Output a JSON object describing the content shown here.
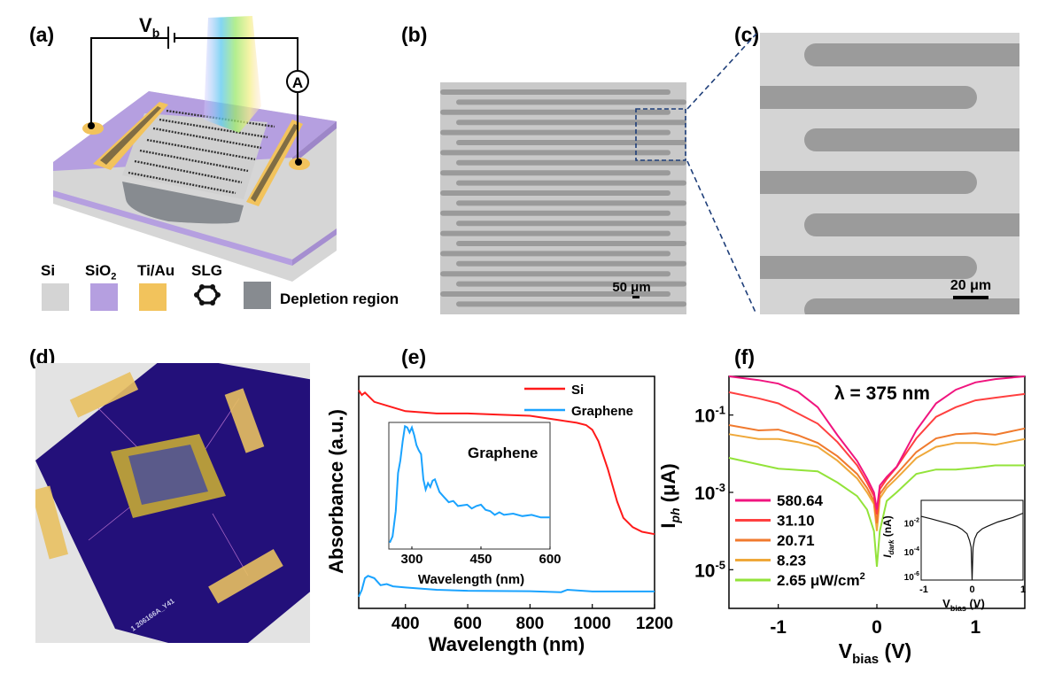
{
  "panels": {
    "a": {
      "label": "(a)",
      "bias_label": "V",
      "bias_sub": "b",
      "ammeter": "A",
      "legend": [
        {
          "label": "Si",
          "color": "#d4d4d4"
        },
        {
          "label": "SiO",
          "sub": "2",
          "color": "#b59fe0"
        },
        {
          "label": "Ti/Au",
          "color": "#f2c35c"
        },
        {
          "label": "SLG",
          "icon": "hexagon-ring-icon"
        },
        {
          "label": "Depletion region",
          "color": "#878b90"
        }
      ]
    },
    "b": {
      "label": "(b)",
      "scale_bar": "50 μm"
    },
    "c": {
      "label": "(c)",
      "scale_bar": "20 μm"
    },
    "d": {
      "label": "(d)",
      "board_text": "1 206166A_Y41"
    },
    "e": {
      "label": "(e)"
    },
    "f": {
      "label": "(f)"
    }
  },
  "chart_data": [
    {
      "panel": "e",
      "type": "line",
      "xlabel": "Wavelength (nm)",
      "ylabel": "Absorbance (a.u.)",
      "xlim": [
        250,
        1200
      ],
      "ylim": [
        0,
        1
      ],
      "xticks": [
        400,
        600,
        800,
        1000,
        1200
      ],
      "legend_position": "top-right",
      "series": [
        {
          "name": "Si",
          "color": "#ff1a1a",
          "x": [
            250,
            260,
            270,
            300,
            350,
            400,
            500,
            600,
            700,
            800,
            900,
            950,
            980,
            1000,
            1020,
            1050,
            1080,
            1100,
            1130,
            1160,
            1200
          ],
          "y": [
            0.94,
            0.92,
            0.93,
            0.89,
            0.87,
            0.85,
            0.84,
            0.84,
            0.835,
            0.83,
            0.81,
            0.8,
            0.79,
            0.77,
            0.72,
            0.6,
            0.46,
            0.39,
            0.35,
            0.33,
            0.32
          ]
        },
        {
          "name": "Graphene",
          "color": "#1aa3ff",
          "x": [
            250,
            260,
            270,
            280,
            300,
            320,
            340,
            360,
            400,
            500,
            600,
            800,
            900,
            920,
            1000,
            1200
          ],
          "y": [
            0.05,
            0.08,
            0.13,
            0.14,
            0.13,
            0.1,
            0.105,
            0.095,
            0.09,
            0.08,
            0.076,
            0.074,
            0.07,
            0.08,
            0.073,
            0.073
          ]
        }
      ],
      "inset": {
        "type": "line",
        "title": "Graphene",
        "xlabel": "Wavelength (nm)",
        "xlim": [
          250,
          600
        ],
        "ylim": [
          0,
          1
        ],
        "xticks": [
          300,
          450,
          600
        ],
        "series": [
          {
            "color": "#1aa3ff",
            "x": [
              252,
              258,
              265,
              270,
              275,
              280,
              285,
              290,
              295,
              300,
              305,
              310,
              315,
              320,
              325,
              330,
              335,
              340,
              345,
              350,
              355,
              360,
              370,
              380,
              390,
              400,
              420,
              430,
              440,
              450,
              460,
              470,
              480,
              490,
              500,
              520,
              540,
              560,
              580,
              600
            ],
            "y": [
              0.05,
              0.1,
              0.3,
              0.6,
              0.7,
              0.85,
              0.97,
              0.96,
              0.92,
              0.96,
              0.9,
              0.82,
              0.78,
              0.75,
              0.55,
              0.47,
              0.52,
              0.49,
              0.54,
              0.55,
              0.5,
              0.45,
              0.41,
              0.37,
              0.38,
              0.34,
              0.35,
              0.32,
              0.34,
              0.35,
              0.31,
              0.3,
              0.27,
              0.29,
              0.27,
              0.28,
              0.26,
              0.27,
              0.25,
              0.25
            ]
          }
        ]
      }
    },
    {
      "panel": "f",
      "type": "line",
      "title": "λ = 375 nm",
      "xlabel": "V",
      "xlabel_sub": "bias",
      "xlabel_unit": " (V)",
      "ylabel": "I",
      "ylabel_sub": "ph",
      "ylabel_unit": " (μA)",
      "xlim": [
        -1.5,
        1.5
      ],
      "ylim": [
        1e-06,
        1
      ],
      "yscale": "log",
      "xticks": [
        -1,
        0,
        1
      ],
      "yticks": [
        {
          "value": 0.1,
          "base": "10",
          "exp": "-1"
        },
        {
          "value": 0.001,
          "base": "10",
          "exp": "-3"
        },
        {
          "value": 1e-05,
          "base": "10",
          "exp": "-5"
        }
      ],
      "legend_position": "bottom-left",
      "legend_unit": "μW/cm",
      "legend_unit_sup": "2",
      "x": [
        -1.5,
        -1.2,
        -1,
        -0.8,
        -0.6,
        -0.4,
        -0.2,
        -0.1,
        -0.03,
        0,
        0.03,
        0.1,
        0.2,
        0.4,
        0.6,
        0.8,
        1,
        1.2,
        1.5
      ],
      "series": [
        {
          "name": "580.64",
          "color": "#f0157f",
          "y": [
            1.0,
            0.8,
            0.65,
            0.4,
            0.16,
            0.03,
            0.0065,
            0.0023,
            0.001,
            0.00036,
            0.0015,
            0.0025,
            0.0046,
            0.04,
            0.2,
            0.45,
            0.7,
            0.85,
            1.0
          ]
        },
        {
          "name": "31.10",
          "color": "#ff4040",
          "y": [
            0.39,
            0.27,
            0.2,
            0.11,
            0.06,
            0.02,
            0.005,
            0.0018,
            0.0008,
            0.00027,
            0.0012,
            0.0022,
            0.0045,
            0.025,
            0.09,
            0.16,
            0.24,
            0.28,
            0.35
          ]
        },
        {
          "name": "20.71",
          "color": "#f07a2e",
          "y": [
            0.055,
            0.04,
            0.042,
            0.03,
            0.019,
            0.0086,
            0.003,
            0.0013,
            0.0006,
            0.00016,
            0.0009,
            0.0016,
            0.003,
            0.011,
            0.025,
            0.032,
            0.034,
            0.031,
            0.045
          ]
        },
        {
          "name": "8.23",
          "color": "#efa83a",
          "y": [
            0.032,
            0.024,
            0.024,
            0.02,
            0.015,
            0.0066,
            0.0023,
            0.001,
            0.0005,
            0.0001,
            0.0007,
            0.0013,
            0.0023,
            0.0077,
            0.015,
            0.019,
            0.019,
            0.017,
            0.024
          ]
        },
        {
          "name": "2.65",
          "color": "#93e33a",
          "y": [
            0.0078,
            0.0053,
            0.0041,
            0.0038,
            0.0035,
            0.0018,
            0.0008,
            0.00036,
            0.0001,
            1.2e-05,
            0.0001,
            0.0006,
            0.001,
            0.003,
            0.0039,
            0.0039,
            0.0043,
            0.005,
            0.005
          ]
        }
      ],
      "inset": {
        "type": "line",
        "xlabel": "V",
        "xlabel_sub": "bias",
        "xlabel_unit": " (V)",
        "ylabel": "I",
        "ylabel_sub": "dark",
        "ylabel_unit": " (nA)",
        "yscale": "log",
        "xlim": [
          -1,
          1
        ],
        "ylim": [
          1e-06,
          0.4
        ],
        "xticks": [
          {
            "value": -1,
            "label": "-1"
          },
          {
            "value": 0,
            "label": "0"
          },
          {
            "value": 1,
            "label": "1"
          }
        ],
        "yticks": [
          {
            "value": 0.01,
            "base": "10",
            "exp": "-2"
          },
          {
            "value": 0.0001,
            "base": "10",
            "exp": "-4"
          },
          {
            "value": 1e-06,
            "base": "10",
            "exp": "-6"
          }
        ],
        "series": [
          {
            "color": "#111111",
            "x": [
              -1,
              -0.8,
              -0.5,
              -0.3,
              -0.2,
              -0.1,
              -0.05,
              -0.02,
              0,
              0.02,
              0.05,
              0.1,
              0.2,
              0.3,
              0.5,
              0.8,
              1
            ],
            "y": [
              0.03,
              0.02,
              0.01,
              0.006,
              0.0037,
              0.0018,
              0.0006,
              0.0002,
              1e-06,
              0.0002,
              0.0008,
              0.002,
              0.004,
              0.006,
              0.012,
              0.025,
              0.05
            ]
          }
        ]
      }
    }
  ]
}
